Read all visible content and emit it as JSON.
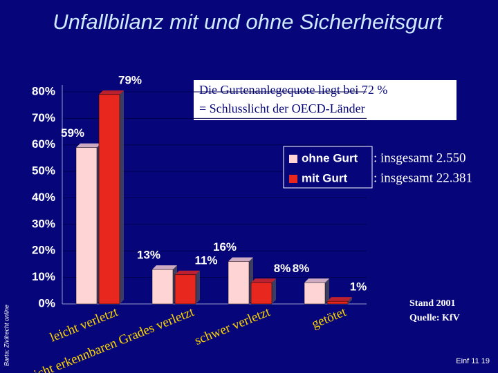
{
  "title": "Unfallbilanz mit und ohne Sicherheitsgurt",
  "side_note": "Barta: Zivilrecht online",
  "note_box": [
    "Die Gurtenanlegequote liegt bei 72 %",
    "= Schlusslicht der OECD-Länder"
  ],
  "legend_notes": [
    ": insgesamt 2.550",
    ": insgesamt 22.381"
  ],
  "source": [
    "Stand 2001",
    "Quelle: KfV"
  ],
  "footer": "Einf 11  19",
  "chart_data": {
    "type": "bar",
    "categories": [
      "leicht verletzt",
      "nicht erkennbaren Grades verletzt",
      "schwer verletzt",
      "getötet"
    ],
    "series": [
      {
        "name": "ohne Gurt",
        "color": "#ffd4d4",
        "values": [
          59,
          13,
          16,
          8
        ],
        "value_labels": [
          "59%",
          "13%",
          "16%",
          "8%"
        ]
      },
      {
        "name": "mit Gurt",
        "color": "#e8281e",
        "values": [
          79,
          11,
          8,
          1
        ],
        "value_labels": [
          "79%",
          "11%",
          "8%",
          "1%"
        ]
      }
    ],
    "ylim": [
      0,
      80
    ],
    "yticks": [
      {
        "value": 0,
        "label": "0%"
      },
      {
        "value": 10,
        "label": "10%"
      },
      {
        "value": 20,
        "label": "20%"
      },
      {
        "value": 30,
        "label": "30%"
      },
      {
        "value": 40,
        "label": "40%"
      },
      {
        "value": 50,
        "label": "50%"
      },
      {
        "value": 60,
        "label": "60%"
      },
      {
        "value": 70,
        "label": "70%"
      },
      {
        "value": 80,
        "label": "80%"
      }
    ],
    "grid": true
  }
}
